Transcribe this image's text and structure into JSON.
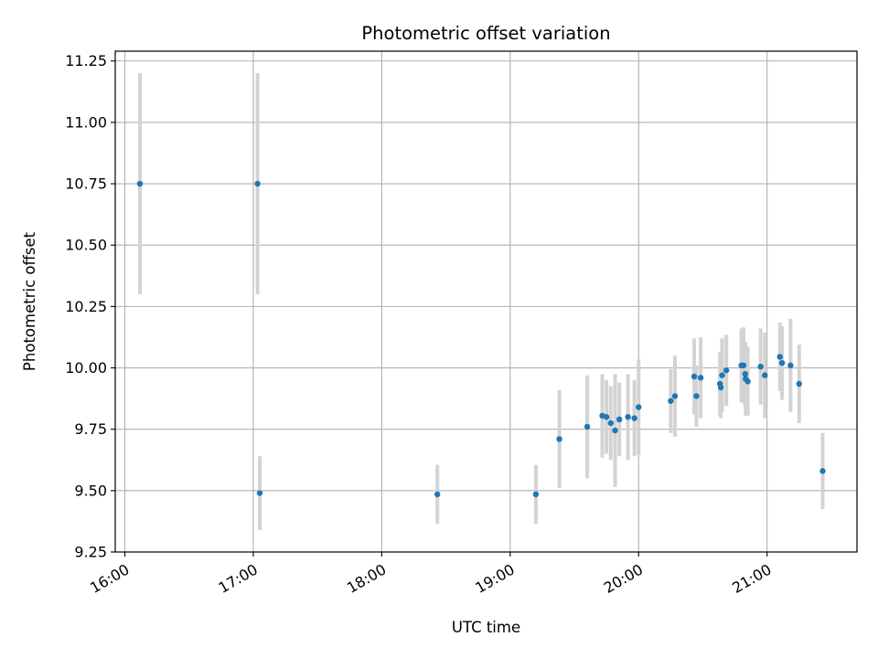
{
  "chart_data": {
    "type": "scatter",
    "title": "Photometric offset variation",
    "xlabel": "UTC time",
    "ylabel": "Photometric offset",
    "x_unit": "hours UTC",
    "xlim": [
      15.925,
      21.7
    ],
    "ylim": [
      9.25,
      11.29
    ],
    "grid": true,
    "xticks": [
      {
        "value": 16,
        "label": "16:00"
      },
      {
        "value": 17,
        "label": "17:00"
      },
      {
        "value": 18,
        "label": "18:00"
      },
      {
        "value": 19,
        "label": "19:00"
      },
      {
        "value": 20,
        "label": "20:00"
      },
      {
        "value": 21,
        "label": "21:00"
      }
    ],
    "yticks": [
      {
        "value": 9.25,
        "label": "9.25"
      },
      {
        "value": 9.5,
        "label": "9.50"
      },
      {
        "value": 9.75,
        "label": "9.75"
      },
      {
        "value": 10.0,
        "label": "10.00"
      },
      {
        "value": 10.25,
        "label": "10.25"
      },
      {
        "value": 10.5,
        "label": "10.50"
      },
      {
        "value": 10.75,
        "label": "10.75"
      },
      {
        "value": 11.0,
        "label": "11.00"
      },
      {
        "value": 11.25,
        "label": "11.25"
      }
    ],
    "colors": {
      "point": "#1f77b4",
      "errorbar": "#d3d3d3",
      "grid": "#b0b0b0",
      "axes": "#000000"
    },
    "series": [
      {
        "name": "Photometric offset",
        "points": [
          {
            "x": 16.117,
            "y": 10.75,
            "err": 0.45
          },
          {
            "x": 17.033,
            "y": 10.75,
            "err": 0.45
          },
          {
            "x": 17.05,
            "y": 9.49,
            "err": 0.15
          },
          {
            "x": 18.433,
            "y": 9.485,
            "err": 0.12
          },
          {
            "x": 19.2,
            "y": 9.485,
            "err": 0.12
          },
          {
            "x": 19.383,
            "y": 9.71,
            "err": 0.2
          },
          {
            "x": 19.6,
            "y": 9.76,
            "err": 0.21
          },
          {
            "x": 19.717,
            "y": 9.805,
            "err": 0.17
          },
          {
            "x": 19.75,
            "y": 9.8,
            "err": 0.15
          },
          {
            "x": 19.783,
            "y": 9.775,
            "err": 0.15
          },
          {
            "x": 19.817,
            "y": 9.745,
            "err": 0.23
          },
          {
            "x": 19.85,
            "y": 9.79,
            "err": 0.15
          },
          {
            "x": 19.917,
            "y": 9.8,
            "err": 0.175
          },
          {
            "x": 19.967,
            "y": 9.795,
            "err": 0.155
          },
          {
            "x": 20.0,
            "y": 9.84,
            "err": 0.195
          },
          {
            "x": 20.25,
            "y": 9.865,
            "err": 0.13
          },
          {
            "x": 20.283,
            "y": 9.885,
            "err": 0.165
          },
          {
            "x": 20.433,
            "y": 9.965,
            "err": 0.155
          },
          {
            "x": 20.45,
            "y": 9.885,
            "err": 0.125
          },
          {
            "x": 20.483,
            "y": 9.96,
            "err": 0.165
          },
          {
            "x": 20.633,
            "y": 9.935,
            "err": 0.13
          },
          {
            "x": 20.64,
            "y": 9.92,
            "err": 0.125
          },
          {
            "x": 20.65,
            "y": 9.97,
            "err": 0.15
          },
          {
            "x": 20.683,
            "y": 9.99,
            "err": 0.145
          },
          {
            "x": 20.8,
            "y": 10.01,
            "err": 0.15
          },
          {
            "x": 20.817,
            "y": 10.01,
            "err": 0.155
          },
          {
            "x": 20.83,
            "y": 9.975,
            "err": 0.13
          },
          {
            "x": 20.833,
            "y": 9.955,
            "err": 0.15
          },
          {
            "x": 20.85,
            "y": 9.945,
            "err": 0.14
          },
          {
            "x": 20.95,
            "y": 10.005,
            "err": 0.155
          },
          {
            "x": 20.983,
            "y": 9.97,
            "err": 0.175
          },
          {
            "x": 21.1,
            "y": 10.045,
            "err": 0.14
          },
          {
            "x": 21.117,
            "y": 10.02,
            "err": 0.15
          },
          {
            "x": 21.183,
            "y": 10.01,
            "err": 0.19
          },
          {
            "x": 21.25,
            "y": 9.935,
            "err": 0.16
          },
          {
            "x": 21.433,
            "y": 9.58,
            "err": 0.155
          }
        ]
      }
    ]
  }
}
